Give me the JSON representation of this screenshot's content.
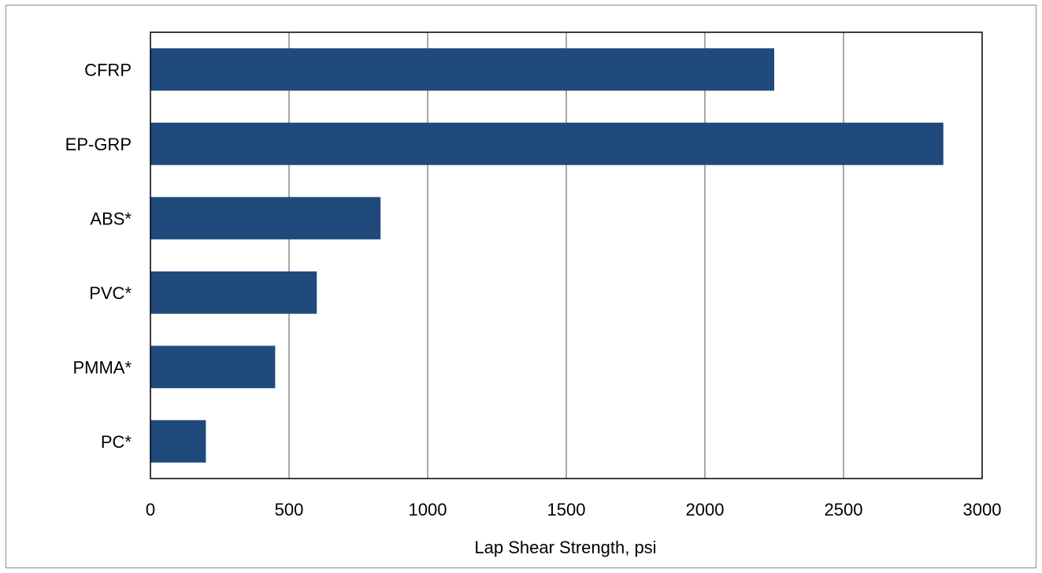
{
  "chart_data": {
    "type": "bar",
    "orientation": "horizontal",
    "categories": [
      "CFRP",
      "EP-GRP",
      "ABS*",
      "PVC*",
      "PMMA*",
      "PC*"
    ],
    "values": [
      2250,
      2860,
      830,
      600,
      450,
      200
    ],
    "xlabel": "Lap Shear Strength, psi",
    "ylabel": "",
    "xlim": [
      0,
      3000
    ],
    "xticks": [
      "0",
      "500",
      "1000",
      "1500",
      "2000",
      "2500",
      "3000"
    ],
    "grid": "vertical",
    "legend": "none",
    "colors": {
      "bar": "#204a7c",
      "grid": "#8c8c8c",
      "axis": "#000000"
    }
  }
}
